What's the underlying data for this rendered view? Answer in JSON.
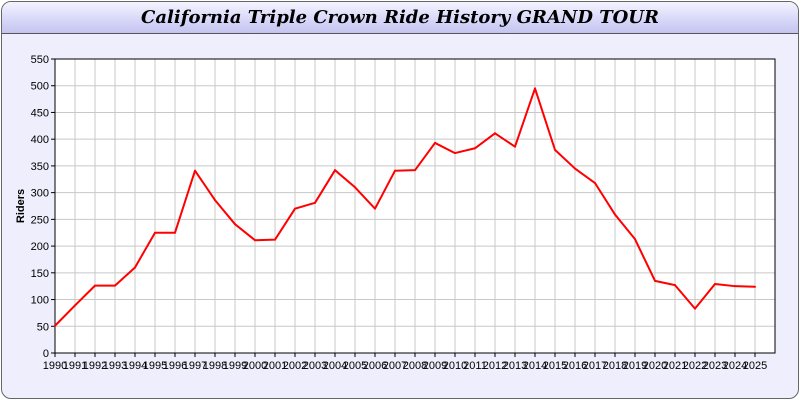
{
  "chart_data": {
    "type": "line",
    "title": "California Triple Crown Ride History GRAND TOUR",
    "xlabel": "",
    "ylabel": "Riders",
    "ylim": [
      0,
      550
    ],
    "yticks": [
      0,
      50,
      100,
      150,
      200,
      250,
      300,
      350,
      400,
      450,
      500,
      550
    ],
    "grid": true,
    "x": [
      1990,
      1991,
      1992,
      1993,
      1994,
      1995,
      1996,
      1997,
      1998,
      1999,
      2000,
      2001,
      2002,
      2003,
      2004,
      2005,
      2006,
      2007,
      2008,
      2009,
      2010,
      2011,
      2012,
      2013,
      2014,
      2015,
      2016,
      2017,
      2018,
      2019,
      2020,
      2021,
      2022,
      2023,
      2024,
      2025
    ],
    "series": [
      {
        "color": "#ff0000",
        "values": [
          51,
          89,
          126,
          126,
          160,
          225,
          225,
          341,
          286,
          241,
          211,
          212,
          270,
          281,
          342,
          310,
          270,
          341,
          342,
          393,
          374,
          383,
          411,
          386,
          495,
          380,
          345,
          318,
          259,
          213,
          135,
          127,
          83,
          129,
          125,
          124
        ]
      }
    ]
  }
}
